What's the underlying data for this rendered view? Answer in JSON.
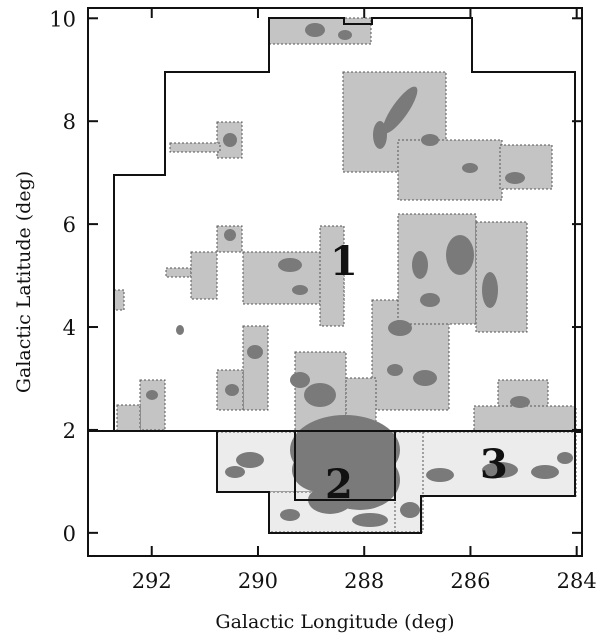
{
  "chart_data": {
    "type": "map",
    "xlabel": "Galactic Longitude (deg)",
    "ylabel": "Galactic Latitude (deg)",
    "xlim": [
      293.2,
      283.9
    ],
    "ylim": [
      -0.45,
      10.2
    ],
    "x_ticks": [
      "292",
      "290",
      "288",
      "286",
      "284"
    ],
    "y_ticks": [
      "0",
      "2",
      "4",
      "6",
      "8",
      "10"
    ],
    "region_labels": [
      "1",
      "2",
      "3"
    ],
    "colors": {
      "survey_fill": "#c4c4c4",
      "emission_dark": "#7a7a7a",
      "outline": "#111111",
      "background": "#ffffff"
    }
  }
}
